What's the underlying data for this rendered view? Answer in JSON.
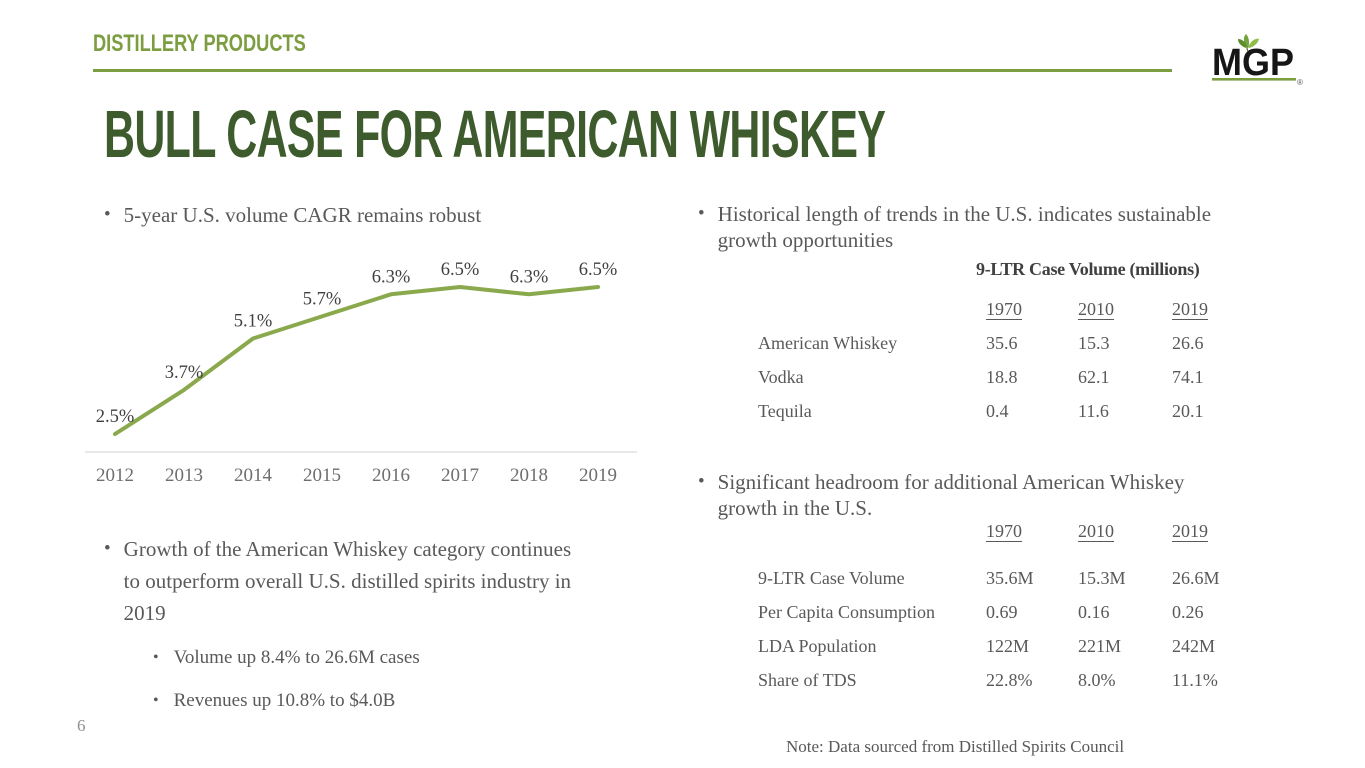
{
  "header": {
    "eyebrow": "DISTILLERY PRODUCTS"
  },
  "logo": {
    "text": "MGP",
    "registered": "®"
  },
  "title": "BULL CASE FOR AMERICAN WHISKEY",
  "left": {
    "bullet_cagr": "5-year U.S. volume CAGR remains robust",
    "bullet_growth": "Growth of the American Whiskey category continues to outperform overall U.S. distilled spirits industry in 2019",
    "sub_bullets": [
      "Volume up 8.4% to 26.6M cases",
      "Revenues up 10.8% to $4.0B"
    ]
  },
  "right": {
    "bullet_trends": "Historical length of trends in the U.S. indicates sustainable growth opportunities",
    "bullet_headroom": "Significant headroom for additional American Whiskey growth in the U.S.",
    "table_categories": {
      "title": "9-LTR Case Volume (millions)",
      "columns": [
        "1970",
        "2010",
        "2019"
      ],
      "rows": [
        {
          "label": "American Whiskey",
          "values": [
            "35.6",
            "15.3",
            "26.6"
          ]
        },
        {
          "label": "Vodka",
          "values": [
            "18.8",
            "62.1",
            "74.1"
          ]
        },
        {
          "label": "Tequila",
          "values": [
            "0.4",
            "11.6",
            "20.1"
          ]
        }
      ]
    },
    "table_headroom": {
      "columns": [
        "1970",
        "2010",
        "2019"
      ],
      "rows": [
        {
          "label": "9-LTR Case Volume",
          "values": [
            "35.6M",
            "15.3M",
            "26.6M"
          ]
        },
        {
          "label": "Per Capita Consumption",
          "values": [
            "0.69",
            "0.16",
            "0.26"
          ]
        },
        {
          "label": "LDA Population",
          "values": [
            "122M",
            "221M",
            "242M"
          ]
        },
        {
          "label": "Share of TDS",
          "values": [
            "22.8%",
            "8.0%",
            "11.1%"
          ]
        }
      ]
    }
  },
  "chart_data": {
    "type": "line",
    "title": "",
    "xlabel": "",
    "ylabel": "",
    "categories": [
      "2012",
      "2013",
      "2014",
      "2015",
      "2016",
      "2017",
      "2018",
      "2019"
    ],
    "values": [
      2.5,
      3.7,
      5.1,
      5.7,
      6.3,
      6.5,
      6.3,
      6.5
    ],
    "point_labels": [
      "2.5%",
      "3.7%",
      "5.1%",
      "5.7%",
      "6.3%",
      "6.5%",
      "6.3%",
      "6.5%"
    ],
    "ylim": [
      2.0,
      7.0
    ],
    "grid": false,
    "legend": false,
    "line_color": "#8aa94d",
    "axis_color": "#d9d9d9",
    "label_color": "#3f3f3f",
    "tick_color": "#6e6e6e"
  },
  "footer": {
    "note": "Note: Data sourced from Distilled Spirits Council",
    "page_number": "6"
  },
  "colors": {
    "accent_green": "#7d9d41",
    "title_green": "#3e5b2d",
    "chart_line_green": "#8aa94d",
    "body_gray": "#595959",
    "data_label_gray": "#3f3f3f",
    "axis_gray": "#d9d9d9",
    "logo_black": "#161616",
    "page_number_gray": "#8f8f8f"
  }
}
